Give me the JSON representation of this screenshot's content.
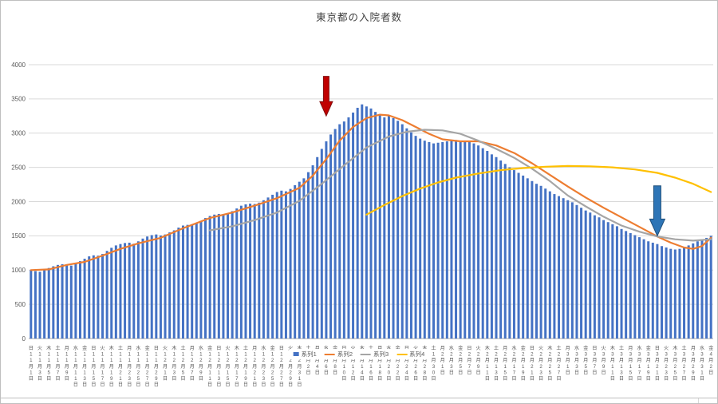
{
  "chart_data": {
    "type": "bar",
    "title": "東京都の入院者数",
    "xlabel": "",
    "ylabel": "",
    "ylim": [
      0,
      4000
    ],
    "grid": true,
    "yticks": [
      "0",
      "500",
      "1000",
      "1500",
      "2000",
      "2500",
      "3000",
      "3500",
      "4000"
    ],
    "x_unit": "day",
    "x_start": {
      "month": 11,
      "day": 1,
      "weekday": "日"
    },
    "x_tick_labels": [
      {
        "w": "日",
        "m": 11,
        "d": 1
      },
      {
        "w": "火",
        "m": 11,
        "d": 3
      },
      {
        "w": "木",
        "m": 11,
        "d": 5
      },
      {
        "w": "土",
        "m": 11,
        "d": 7
      },
      {
        "w": "月",
        "m": 11,
        "d": 9
      },
      {
        "w": "水",
        "m": 11,
        "d": 11
      },
      {
        "w": "金",
        "m": 11,
        "d": 13
      },
      {
        "w": "日",
        "m": 11,
        "d": 15
      },
      {
        "w": "火",
        "m": 11,
        "d": 17
      },
      {
        "w": "木",
        "m": 11,
        "d": 19
      },
      {
        "w": "土",
        "m": 11,
        "d": 21
      },
      {
        "w": "月",
        "m": 11,
        "d": 23
      },
      {
        "w": "水",
        "m": 11,
        "d": 25
      },
      {
        "w": "金",
        "m": 11,
        "d": 27
      },
      {
        "w": "日",
        "m": 11,
        "d": 29
      },
      {
        "w": "火",
        "m": 12,
        "d": 1
      },
      {
        "w": "木",
        "m": 12,
        "d": 3
      },
      {
        "w": "土",
        "m": 12,
        "d": 5
      },
      {
        "w": "月",
        "m": 12,
        "d": 7
      },
      {
        "w": "水",
        "m": 12,
        "d": 9
      },
      {
        "w": "金",
        "m": 12,
        "d": 11
      },
      {
        "w": "日",
        "m": 12,
        "d": 13
      },
      {
        "w": "火",
        "m": 12,
        "d": 15
      },
      {
        "w": "木",
        "m": 12,
        "d": 17
      },
      {
        "w": "土",
        "m": 12,
        "d": 19
      },
      {
        "w": "月",
        "m": 12,
        "d": 21
      },
      {
        "w": "水",
        "m": 12,
        "d": 23
      },
      {
        "w": "金",
        "m": 12,
        "d": 25
      },
      {
        "w": "日",
        "m": 12,
        "d": 27
      },
      {
        "w": "火",
        "m": 12,
        "d": 29
      },
      {
        "w": "木",
        "m": 12,
        "d": 31
      },
      {
        "w": "土",
        "m": 1,
        "d": 2
      },
      {
        "w": "月",
        "m": 1,
        "d": 4
      },
      {
        "w": "水",
        "m": 1,
        "d": 6
      },
      {
        "w": "金",
        "m": 1,
        "d": 8
      },
      {
        "w": "日",
        "m": 1,
        "d": 10
      },
      {
        "w": "火",
        "m": 1,
        "d": 12
      },
      {
        "w": "木",
        "m": 1,
        "d": 14
      },
      {
        "w": "土",
        "m": 1,
        "d": 16
      },
      {
        "w": "月",
        "m": 1,
        "d": 18
      },
      {
        "w": "水",
        "m": 1,
        "d": 20
      },
      {
        "w": "金",
        "m": 1,
        "d": 22
      },
      {
        "w": "日",
        "m": 1,
        "d": 24
      },
      {
        "w": "火",
        "m": 1,
        "d": 26
      },
      {
        "w": "木",
        "m": 1,
        "d": 28
      },
      {
        "w": "土",
        "m": 1,
        "d": 30
      },
      {
        "w": "月",
        "m": 2,
        "d": 1
      },
      {
        "w": "水",
        "m": 2,
        "d": 3
      },
      {
        "w": "金",
        "m": 2,
        "d": 5
      },
      {
        "w": "日",
        "m": 2,
        "d": 7
      },
      {
        "w": "火",
        "m": 2,
        "d": 9
      },
      {
        "w": "木",
        "m": 2,
        "d": 11
      },
      {
        "w": "土",
        "m": 2,
        "d": 13
      },
      {
        "w": "月",
        "m": 2,
        "d": 15
      },
      {
        "w": "水",
        "m": 2,
        "d": 17
      },
      {
        "w": "金",
        "m": 2,
        "d": 19
      },
      {
        "w": "日",
        "m": 2,
        "d": 21
      },
      {
        "w": "火",
        "m": 2,
        "d": 23
      },
      {
        "w": "木",
        "m": 2,
        "d": 25
      },
      {
        "w": "土",
        "m": 2,
        "d": 27
      },
      {
        "w": "月",
        "m": 3,
        "d": 1
      },
      {
        "w": "水",
        "m": 3,
        "d": 3
      },
      {
        "w": "金",
        "m": 3,
        "d": 5
      },
      {
        "w": "日",
        "m": 3,
        "d": 7
      },
      {
        "w": "火",
        "m": 3,
        "d": 9
      },
      {
        "w": "木",
        "m": 3,
        "d": 11
      },
      {
        "w": "土",
        "m": 3,
        "d": 13
      },
      {
        "w": "月",
        "m": 3,
        "d": 15
      },
      {
        "w": "水",
        "m": 3,
        "d": 17
      },
      {
        "w": "金",
        "m": 3,
        "d": 19
      },
      {
        "w": "日",
        "m": 3,
        "d": 21
      },
      {
        "w": "火",
        "m": 3,
        "d": 23
      },
      {
        "w": "木",
        "m": 3,
        "d": 25
      },
      {
        "w": "土",
        "m": 3,
        "d": 27
      },
      {
        "w": "月",
        "m": 3,
        "d": 29
      },
      {
        "w": "水",
        "m": 3,
        "d": 31
      },
      {
        "w": "金",
        "m": 4,
        "d": 2
      }
    ],
    "series": [
      {
        "name": "系列1",
        "type": "bar",
        "color": "#4472C4",
        "values": [
          1000,
          985,
          975,
          1005,
          1030,
          1055,
          1075,
          1085,
          1070,
          1065,
          1095,
          1130,
          1165,
          1200,
          1215,
          1210,
          1235,
          1280,
          1325,
          1360,
          1380,
          1395,
          1400,
          1385,
          1420,
          1460,
          1490,
          1510,
          1520,
          1505,
          1520,
          1550,
          1580,
          1620,
          1650,
          1660,
          1655,
          1685,
          1720,
          1760,
          1790,
          1810,
          1820,
          1805,
          1825,
          1860,
          1900,
          1940,
          1960,
          1970,
          1965,
          1985,
          2020,
          2060,
          2100,
          2140,
          2160,
          2150,
          2185,
          2240,
          2290,
          2340,
          2430,
          2530,
          2650,
          2770,
          2880,
          2980,
          3060,
          3130,
          3170,
          3230,
          3300,
          3370,
          3420,
          3390,
          3360,
          3310,
          3270,
          3230,
          3250,
          3220,
          3180,
          3130,
          3070,
          3010,
          2960,
          2920,
          2890,
          2870,
          2850,
          2860,
          2870,
          2880,
          2890,
          2900,
          2890,
          2880,
          2870,
          2850,
          2820,
          2780,
          2740,
          2690,
          2650,
          2600,
          2550,
          2500,
          2460,
          2420,
          2380,
          2340,
          2300,
          2260,
          2230,
          2190,
          2150,
          2110,
          2080,
          2050,
          2020,
          1990,
          1950,
          1910,
          1870,
          1840,
          1800,
          1770,
          1730,
          1700,
          1670,
          1640,
          1600,
          1570,
          1540,
          1510,
          1480,
          1450,
          1420,
          1400,
          1380,
          1350,
          1330,
          1310,
          1300,
          1310,
          1330,
          1360,
          1390,
          1420,
          1450,
          1470,
          1500
        ]
      },
      {
        "name": "系列2",
        "type": "line",
        "color": "#ED7D31",
        "points": [
          [
            0,
            1000
          ],
          [
            4,
            1010
          ],
          [
            8,
            1075
          ],
          [
            12,
            1120
          ],
          [
            16,
            1210
          ],
          [
            20,
            1310
          ],
          [
            24,
            1390
          ],
          [
            29,
            1470
          ],
          [
            34,
            1610
          ],
          [
            40,
            1760
          ],
          [
            45,
            1840
          ],
          [
            50,
            1940
          ],
          [
            55,
            2050
          ],
          [
            60,
            2200
          ],
          [
            63,
            2380
          ],
          [
            66,
            2620
          ],
          [
            69,
            2890
          ],
          [
            72,
            3090
          ],
          [
            75,
            3220
          ],
          [
            78,
            3270
          ],
          [
            80,
            3260
          ],
          [
            83,
            3190
          ],
          [
            86,
            3090
          ],
          [
            89,
            2990
          ],
          [
            92,
            2910
          ],
          [
            96,
            2880
          ],
          [
            100,
            2880
          ],
          [
            104,
            2820
          ],
          [
            108,
            2710
          ],
          [
            112,
            2560
          ],
          [
            116,
            2390
          ],
          [
            120,
            2220
          ],
          [
            124,
            2060
          ],
          [
            128,
            1910
          ],
          [
            132,
            1770
          ],
          [
            136,
            1630
          ],
          [
            140,
            1490
          ],
          [
            143,
            1400
          ],
          [
            146,
            1330
          ],
          [
            148,
            1310
          ],
          [
            150,
            1350
          ],
          [
            152,
            1470
          ]
        ]
      },
      {
        "name": "系列3",
        "type": "line",
        "color": "#A5A5A5",
        "points": [
          [
            40,
            1580
          ],
          [
            45,
            1640
          ],
          [
            50,
            1730
          ],
          [
            55,
            1840
          ],
          [
            60,
            2010
          ],
          [
            65,
            2260
          ],
          [
            70,
            2530
          ],
          [
            75,
            2790
          ],
          [
            80,
            2950
          ],
          [
            84,
            3020
          ],
          [
            88,
            3050
          ],
          [
            92,
            3040
          ],
          [
            96,
            2990
          ],
          [
            100,
            2890
          ],
          [
            104,
            2770
          ],
          [
            108,
            2640
          ],
          [
            112,
            2480
          ],
          [
            116,
            2300
          ],
          [
            120,
            2090
          ],
          [
            124,
            1930
          ],
          [
            128,
            1780
          ],
          [
            132,
            1650
          ],
          [
            136,
            1560
          ],
          [
            140,
            1490
          ],
          [
            144,
            1450
          ],
          [
            148,
            1430
          ],
          [
            152,
            1450
          ]
        ]
      },
      {
        "name": "系列4",
        "type": "line",
        "color": "#FFC000",
        "points": [
          [
            75,
            1810
          ],
          [
            79,
            1950
          ],
          [
            83,
            2080
          ],
          [
            87,
            2190
          ],
          [
            91,
            2280
          ],
          [
            95,
            2350
          ],
          [
            100,
            2410
          ],
          [
            105,
            2460
          ],
          [
            110,
            2490
          ],
          [
            115,
            2510
          ],
          [
            120,
            2520
          ],
          [
            125,
            2515
          ],
          [
            130,
            2500
          ],
          [
            135,
            2470
          ],
          [
            140,
            2420
          ],
          [
            144,
            2350
          ],
          [
            148,
            2260
          ],
          [
            152,
            2140
          ]
        ]
      }
    ],
    "legend": {
      "position": "bottom",
      "entries": [
        {
          "label": "系列1",
          "color": "#4472C4",
          "marker": "square"
        },
        {
          "label": "系列2",
          "color": "#ED7D31",
          "marker": "line"
        },
        {
          "label": "系列3",
          "color": "#A5A5A5",
          "marker": "line"
        },
        {
          "label": "系列4",
          "color": "#FFC000",
          "marker": "line"
        }
      ]
    },
    "annotations": [
      {
        "name": "red-arrow-annotation",
        "shape": "arrow-down",
        "fill": "#C00000",
        "stroke": "#7F1010",
        "bar_index": 66,
        "tip_value": 3250,
        "tail_value": 3830,
        "shaft_half": 3.5,
        "head_half": 8,
        "head_length": 18
      },
      {
        "name": "blue-arrow-annotation",
        "shape": "arrow-down",
        "fill": "#2E75B6",
        "stroke": "#1F4E79",
        "bar_index": 140,
        "tip_value": 1500,
        "tail_value": 2230,
        "shaft_half": 4.5,
        "head_half": 9.5,
        "head_length": 21
      }
    ]
  }
}
